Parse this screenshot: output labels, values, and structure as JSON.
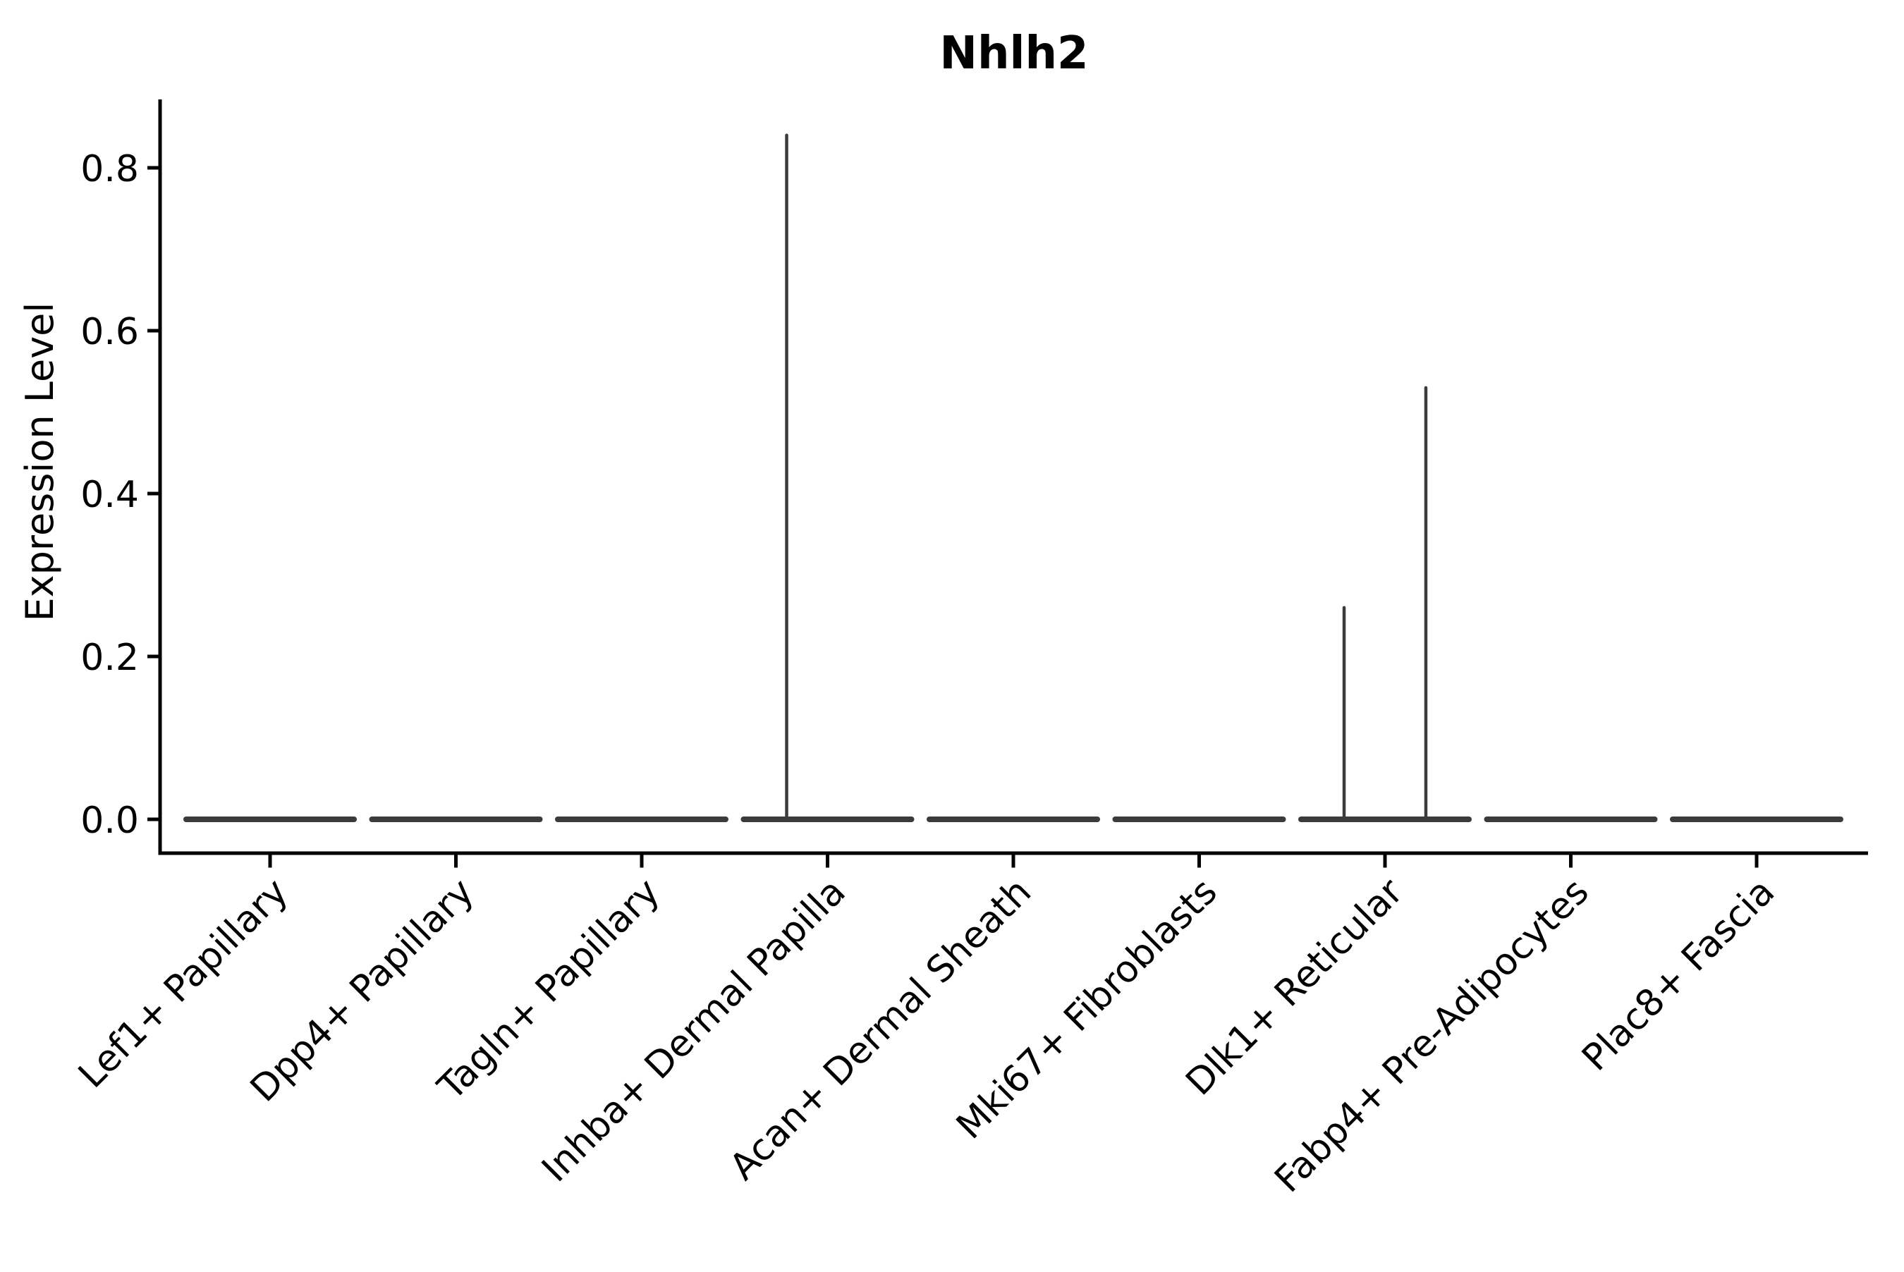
{
  "chart_data": {
    "type": "violin",
    "title": "Nhlh2",
    "xlabel": "",
    "ylabel": "Expression Level",
    "categories": [
      "Lef1+ Papillary",
      "Dpp4+ Papillary",
      "Tagln+ Papillary",
      "Inhba+ Dermal Papilla",
      "Acan+ Dermal Sheath",
      "Mki67+ Fibroblasts",
      "Dlk1+ Reticular",
      "Fabp4+ Pre-Adipocytes",
      "Plac8+ Fascia"
    ],
    "ytick_labels": [
      "0.0",
      "0.2",
      "0.4",
      "0.6",
      "0.8"
    ],
    "ytick_values": [
      0.0,
      0.2,
      0.4,
      0.6,
      0.8
    ],
    "ylim": [
      0.0,
      0.884
    ],
    "grid": false,
    "legend": null,
    "baseline_value": 0.0,
    "violins": [
      {
        "category": "Lef1+ Papillary",
        "bulk_at": 0.0,
        "max_expression": 0.0
      },
      {
        "category": "Dpp4+ Papillary",
        "bulk_at": 0.0,
        "max_expression": 0.0
      },
      {
        "category": "Tagln+ Papillary",
        "bulk_at": 0.0,
        "max_expression": 0.0
      },
      {
        "category": "Inhba+ Dermal Papilla",
        "bulk_at": 0.0,
        "max_expression": 0.84
      },
      {
        "category": "Acan+ Dermal Sheath",
        "bulk_at": 0.0,
        "max_expression": 0.0
      },
      {
        "category": "Mki67+ Fibroblasts",
        "bulk_at": 0.0,
        "max_expression": 0.0
      },
      {
        "category": "Dlk1+ Reticular",
        "bulk_at": 0.0,
        "max_expression": 0.53
      },
      {
        "category": "Fabp4+ Pre-Adipocytes",
        "bulk_at": 0.0,
        "max_expression": 0.0
      },
      {
        "category": "Plac8+ Fascia",
        "bulk_at": 0.0,
        "max_expression": 0.0
      }
    ],
    "spikes": [
      {
        "category": "Inhba+ Dermal Papilla",
        "category_index": 3,
        "peak_value": 0.84,
        "offset_fraction": -0.22
      },
      {
        "category": "Dlk1+ Reticular",
        "category_index": 6,
        "peak_value": 0.26,
        "offset_fraction": -0.22
      },
      {
        "category": "Dlk1+ Reticular",
        "category_index": 6,
        "peak_value": 0.53,
        "offset_fraction": 0.22
      }
    ],
    "colors": {
      "violin_stroke": "#3b3b3b",
      "axis": "#000000",
      "text": "#000000",
      "background": "#ffffff"
    }
  }
}
